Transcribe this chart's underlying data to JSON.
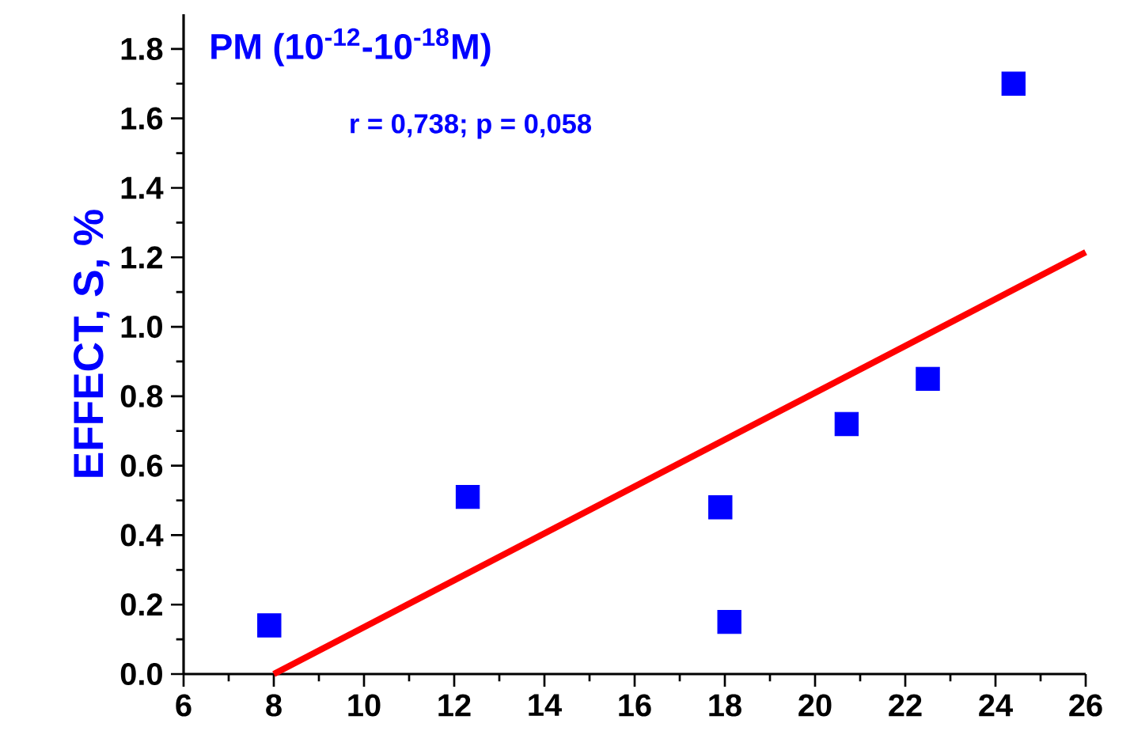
{
  "chart_data": {
    "type": "scatter",
    "title": "PM (10$^{-12}$-10$^{-18}$M)",
    "ylabel": "EFFECT, S, %",
    "annotations": [
      "r = 0,738; p =  0,058"
    ],
    "series": [
      {
        "color": "#0000ff",
        "marker": "square",
        "x": [
          7.9,
          12.3,
          17.9,
          18.1,
          20.7,
          22.5,
          24.4
        ],
        "values": [
          0.14,
          0.51,
          0.48,
          0.15,
          0.72,
          0.85,
          1.7
        ]
      },
      {
        "type": "line",
        "color": "#ff0000",
        "marker": "none",
        "x": [
          8,
          26
        ],
        "values": [
          0.0,
          1.215
        ]
      }
    ],
    "xlim": [
      6,
      26
    ],
    "xticks": [
      6,
      8,
      10,
      12,
      14,
      16,
      18,
      20,
      22,
      24,
      26
    ],
    "ylim": [
      0,
      1.9
    ],
    "yticks": [
      {
        "value": 0,
        "label": "0.0"
      },
      0.2,
      0.4,
      0.6,
      0.8,
      {
        "value": 1,
        "label": "1.0"
      },
      1.2,
      1.4,
      1.6,
      1.8
    ],
    "grid": false
  }
}
